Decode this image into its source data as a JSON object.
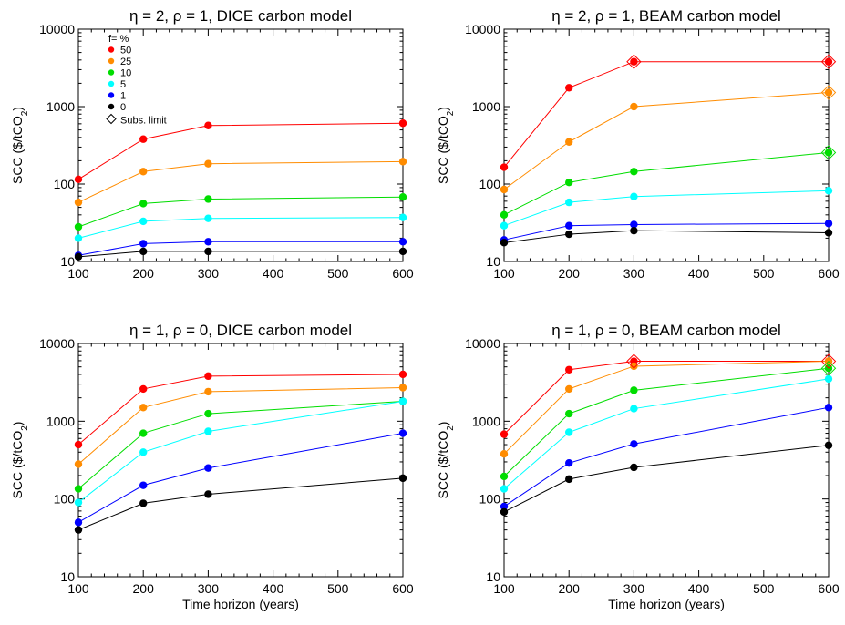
{
  "chart_data": [
    {
      "type": "line",
      "title": "η = 2, ρ = 1, DICE carbon model",
      "xlabel": "",
      "ylabel": "SCC ($/tCO₂)",
      "x": [
        100,
        200,
        300,
        600
      ],
      "x_ticks": [
        100,
        200,
        300,
        400,
        500,
        600
      ],
      "xlim": [
        100,
        600
      ],
      "ylim": [
        10,
        10000
      ],
      "yscale": "log",
      "y_ticks": [
        10,
        100,
        1000,
        10000
      ],
      "grid": false,
      "legend": {
        "placement": "top-left",
        "title": "f= %",
        "subs_limit_label": "Subs. limit"
      },
      "series": [
        {
          "name": "50",
          "color": "#ff0000",
          "values": [
            115,
            380,
            570,
            610
          ]
        },
        {
          "name": "25",
          "color": "#ff8c00",
          "values": [
            58,
            145,
            183,
            195
          ]
        },
        {
          "name": "10",
          "color": "#00dd00",
          "values": [
            28,
            56,
            64,
            68
          ]
        },
        {
          "name": "5",
          "color": "#00ffff",
          "values": [
            20,
            33,
            36,
            37
          ]
        },
        {
          "name": "1",
          "color": "#0000ff",
          "values": [
            12,
            17,
            18,
            18
          ]
        },
        {
          "name": "0",
          "color": "#000000",
          "values": [
            11.5,
            13.5,
            13.5,
            13.5
          ]
        }
      ],
      "subs_limit_points": []
    },
    {
      "type": "line",
      "title": "η = 2, ρ = 1, BEAM carbon model",
      "xlabel": "",
      "ylabel": "SCC ($/tCO₂)",
      "x": [
        100,
        200,
        300,
        600
      ],
      "x_ticks": [
        100,
        200,
        300,
        400,
        500,
        600
      ],
      "xlim": [
        100,
        600
      ],
      "ylim": [
        10,
        10000
      ],
      "yscale": "log",
      "y_ticks": [
        10,
        100,
        1000,
        10000
      ],
      "grid": false,
      "series": [
        {
          "color": "#ff0000",
          "values": [
            165,
            1750,
            3800,
            3800
          ]
        },
        {
          "color": "#ff8c00",
          "values": [
            85,
            350,
            1000,
            1520
          ]
        },
        {
          "color": "#00dd00",
          "values": [
            40,
            105,
            145,
            255
          ]
        },
        {
          "color": "#00ffff",
          "values": [
            29,
            58,
            69,
            82
          ]
        },
        {
          "color": "#0000ff",
          "values": [
            19,
            29,
            30,
            31
          ]
        },
        {
          "color": "#000000",
          "values": [
            17.5,
            22.5,
            25,
            23.5
          ]
        }
      ],
      "subs_limit_points": [
        {
          "series": 0,
          "index": 2
        },
        {
          "series": 0,
          "index": 3
        },
        {
          "series": 1,
          "index": 3
        },
        {
          "series": 2,
          "index": 3
        }
      ]
    },
    {
      "type": "line",
      "title": "η = 1, ρ = 0, DICE carbon model",
      "xlabel": "Time horizon (years)",
      "ylabel": "SCC ($/tCO₂)",
      "x": [
        100,
        200,
        300,
        600
      ],
      "x_ticks": [
        100,
        200,
        300,
        400,
        500,
        600
      ],
      "xlim": [
        100,
        600
      ],
      "ylim": [
        10,
        10000
      ],
      "yscale": "log",
      "y_ticks": [
        10,
        100,
        1000,
        10000
      ],
      "grid": false,
      "series": [
        {
          "color": "#ff0000",
          "values": [
            500,
            2600,
            3800,
            4000
          ]
        },
        {
          "color": "#ff8c00",
          "values": [
            280,
            1500,
            2400,
            2700
          ]
        },
        {
          "color": "#00dd00",
          "values": [
            135,
            700,
            1250,
            1800
          ]
        },
        {
          "color": "#00ffff",
          "values": [
            90,
            400,
            740,
            1800
          ]
        },
        {
          "color": "#0000ff",
          "values": [
            50,
            150,
            250,
            700
          ]
        },
        {
          "color": "#000000",
          "values": [
            40,
            88,
            115,
            185
          ]
        }
      ],
      "subs_limit_points": []
    },
    {
      "type": "line",
      "title": "η = 1, ρ = 0, BEAM carbon model",
      "xlabel": "Time horizon (years)",
      "ylabel": "SCC ($/tCO₂)",
      "x": [
        100,
        200,
        300,
        600
      ],
      "x_ticks": [
        100,
        200,
        300,
        400,
        500,
        600
      ],
      "xlim": [
        100,
        600
      ],
      "ylim": [
        10,
        10000
      ],
      "yscale": "log",
      "y_ticks": [
        10,
        100,
        1000,
        10000
      ],
      "grid": false,
      "series": [
        {
          "color": "#ff0000",
          "values": [
            680,
            4600,
            5900,
            5900
          ]
        },
        {
          "color": "#ff8c00",
          "values": [
            380,
            2600,
            5100,
            5900
          ]
        },
        {
          "color": "#00dd00",
          "values": [
            195,
            1250,
            2500,
            4800
          ]
        },
        {
          "color": "#00ffff",
          "values": [
            135,
            720,
            1450,
            3500
          ]
        },
        {
          "color": "#0000ff",
          "values": [
            80,
            290,
            510,
            1500
          ]
        },
        {
          "color": "#000000",
          "values": [
            68,
            180,
            255,
            490
          ]
        }
      ],
      "subs_limit_points": [
        {
          "series": 0,
          "index": 2
        },
        {
          "series": 0,
          "index": 3
        },
        {
          "series": 2,
          "index": 3
        }
      ]
    }
  ]
}
